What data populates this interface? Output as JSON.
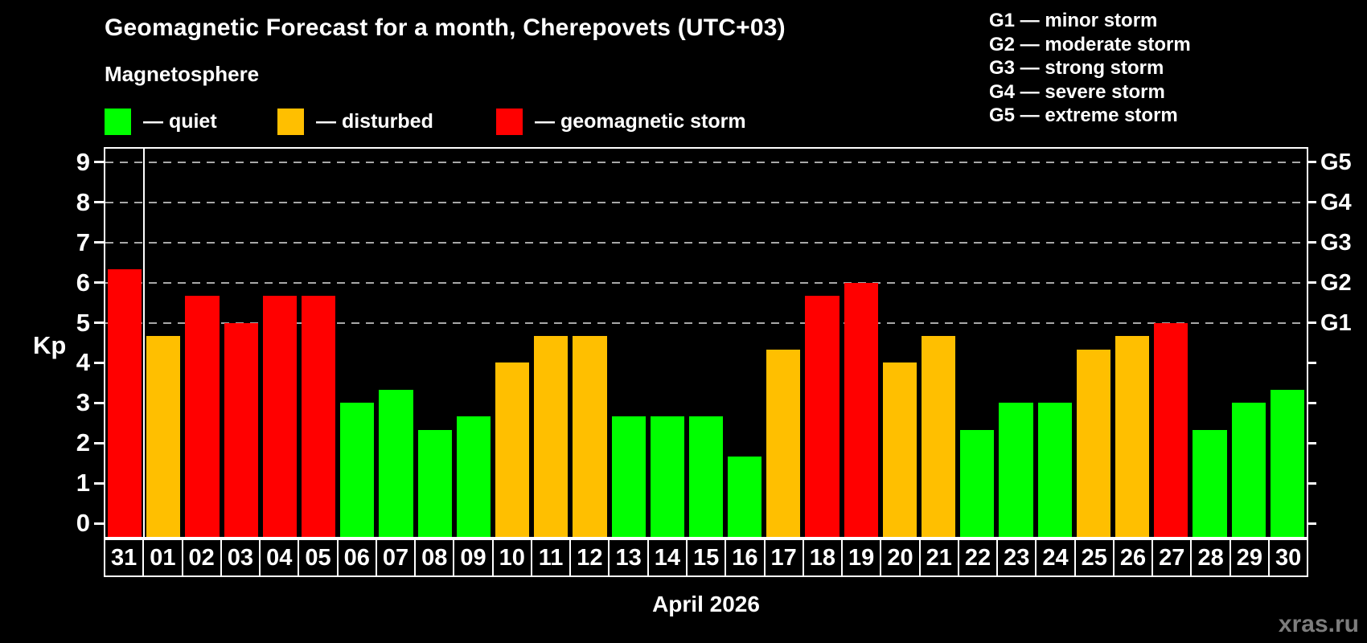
{
  "title": "Geomagnetic Forecast for a month, Cherepovets (UTC+03)",
  "subtitle": "Magnetosphere",
  "legend": {
    "items": [
      {
        "id": "quiet",
        "label": "— quiet",
        "color": "#00ff00"
      },
      {
        "id": "disturbed",
        "label": "— disturbed",
        "color": "#ffbf00"
      },
      {
        "id": "storm",
        "label": "— geomagnetic storm",
        "color": "#ff0000"
      }
    ]
  },
  "g_legend": [
    "G1 — minor storm",
    "G2 — moderate storm",
    "G3 — strong storm",
    "G4 — severe storm",
    "G5 — extreme storm"
  ],
  "watermark": "xras.ru",
  "chart_data": {
    "type": "bar",
    "title": "Geomagnetic Forecast for a month, Cherepovets (UTC+03)",
    "xlabel": "April 2026",
    "ylabel": "Kp",
    "ylim": [
      0,
      9
    ],
    "yticks": [
      0,
      1,
      2,
      3,
      4,
      5,
      6,
      7,
      8,
      9
    ],
    "grid_levels": [
      5,
      6,
      7,
      8,
      9
    ],
    "grid": "dashed-horizontal-on-storm-levels-only",
    "legend_position": "top",
    "right_axis": [
      {
        "kp": 5,
        "label": "G1"
      },
      {
        "kp": 6,
        "label": "G2"
      },
      {
        "kp": 7,
        "label": "G3"
      },
      {
        "kp": 8,
        "label": "G4"
      },
      {
        "kp": 9,
        "label": "G5"
      }
    ],
    "status_colors": {
      "quiet": "#00ff00",
      "disturbed": "#ffbf00",
      "storm": "#ff0000"
    },
    "categories": [
      "31",
      "01",
      "02",
      "03",
      "04",
      "05",
      "06",
      "07",
      "08",
      "09",
      "10",
      "11",
      "12",
      "13",
      "14",
      "15",
      "16",
      "17",
      "18",
      "19",
      "20",
      "21",
      "22",
      "23",
      "24",
      "25",
      "26",
      "27",
      "28",
      "29",
      "30"
    ],
    "series": [
      {
        "name": "Kp forecast",
        "bars": [
          {
            "day": "31",
            "kp": 6.33,
            "status": "storm"
          },
          {
            "day": "01",
            "kp": 4.67,
            "status": "disturbed"
          },
          {
            "day": "02",
            "kp": 5.67,
            "status": "storm"
          },
          {
            "day": "03",
            "kp": 5.0,
            "status": "storm"
          },
          {
            "day": "04",
            "kp": 5.67,
            "status": "storm"
          },
          {
            "day": "05",
            "kp": 5.67,
            "status": "storm"
          },
          {
            "day": "06",
            "kp": 3.0,
            "status": "quiet"
          },
          {
            "day": "07",
            "kp": 3.33,
            "status": "quiet"
          },
          {
            "day": "08",
            "kp": 2.33,
            "status": "quiet"
          },
          {
            "day": "09",
            "kp": 2.67,
            "status": "quiet"
          },
          {
            "day": "10",
            "kp": 4.0,
            "status": "disturbed"
          },
          {
            "day": "11",
            "kp": 4.67,
            "status": "disturbed"
          },
          {
            "day": "12",
            "kp": 4.67,
            "status": "disturbed"
          },
          {
            "day": "13",
            "kp": 2.67,
            "status": "quiet"
          },
          {
            "day": "14",
            "kp": 2.67,
            "status": "quiet"
          },
          {
            "day": "15",
            "kp": 2.67,
            "status": "quiet"
          },
          {
            "day": "16",
            "kp": 1.67,
            "status": "quiet"
          },
          {
            "day": "17",
            "kp": 4.33,
            "status": "disturbed"
          },
          {
            "day": "18",
            "kp": 5.67,
            "status": "storm"
          },
          {
            "day": "19",
            "kp": 6.0,
            "status": "storm"
          },
          {
            "day": "20",
            "kp": 4.0,
            "status": "disturbed"
          },
          {
            "day": "21",
            "kp": 4.67,
            "status": "disturbed"
          },
          {
            "day": "22",
            "kp": 2.33,
            "status": "quiet"
          },
          {
            "day": "23",
            "kp": 3.0,
            "status": "quiet"
          },
          {
            "day": "24",
            "kp": 3.0,
            "status": "quiet"
          },
          {
            "day": "25",
            "kp": 4.33,
            "status": "disturbed"
          },
          {
            "day": "26",
            "kp": 4.67,
            "status": "disturbed"
          },
          {
            "day": "27",
            "kp": 5.0,
            "status": "storm"
          },
          {
            "day": "28",
            "kp": 2.33,
            "status": "quiet"
          },
          {
            "day": "29",
            "kp": 3.0,
            "status": "quiet"
          },
          {
            "day": "30",
            "kp": 3.33,
            "status": "quiet"
          }
        ]
      }
    ],
    "month_separator_after_category": "31"
  }
}
